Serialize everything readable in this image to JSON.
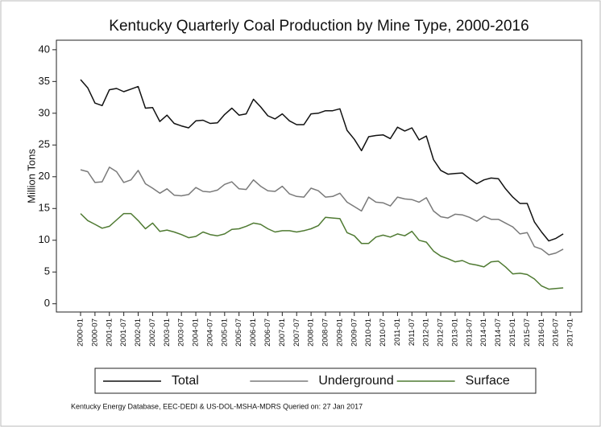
{
  "chart_data": {
    "type": "line",
    "title": "Kentucky Quarterly Coal Production by Mine Type, 2000-2016",
    "y_label": "Million Tons",
    "source": "Kentucky Energy Database, EEC-DEDI & US-DOL-MSHA-MDRS Queried on: 27 Jan 2017",
    "categories": [
      "2000-01",
      null,
      "2000-07",
      null,
      "2001-01",
      null,
      "2001-07",
      null,
      "2002-01",
      null,
      "2002-07",
      null,
      "2003-01",
      null,
      "2003-07",
      null,
      "2004-01",
      null,
      "2004-07",
      null,
      "2005-01",
      null,
      "2005-07",
      null,
      "2006-01",
      null,
      "2006-07",
      null,
      "2007-01",
      null,
      "2007-07",
      null,
      "2008-01",
      null,
      "2008-07",
      null,
      "2009-01",
      null,
      "2009-07",
      null,
      "2010-01",
      null,
      "2010-07",
      null,
      "2011-01",
      null,
      "2011-07",
      null,
      "2012-01",
      null,
      "2012-07",
      null,
      "2013-01",
      null,
      "2013-07",
      null,
      "2014-01",
      null,
      "2014-07",
      null,
      "2015-01",
      null,
      "2015-07",
      null,
      "2016-01",
      null,
      "2016-07",
      null,
      "2017-01"
    ],
    "series": [
      {
        "name": "Total",
        "color": "#111111",
        "values": [
          35.3,
          34,
          31.6,
          31.2,
          33.7,
          33.9,
          33.4,
          33.8,
          34.2,
          30.8,
          30.9,
          28.7,
          29.7,
          28.4,
          28,
          27.7,
          28.8,
          28.9,
          28.4,
          28.5,
          29.8,
          30.8,
          29.7,
          29.9,
          32.2,
          31,
          29.6,
          29.1,
          29.9,
          28.8,
          28.2,
          28.2,
          29.9,
          30,
          30.4,
          30.4,
          30.7,
          27.3,
          25.9,
          24.1,
          26.3,
          26.5,
          26.6,
          26,
          27.8,
          27.2,
          27.7,
          25.8,
          26.4,
          22.7,
          21,
          20.4,
          20.5,
          20.6,
          19.7,
          18.9,
          19.5,
          19.8,
          19.7,
          18.1,
          16.8,
          15.8,
          15.8,
          12.9,
          11.3,
          9.9,
          10.3,
          11,
          null
        ]
      },
      {
        "name": "Underground",
        "color": "#7a7a7a",
        "values": [
          21.1,
          20.8,
          19.1,
          19.2,
          21.5,
          20.8,
          19.1,
          19.5,
          21,
          18.9,
          18.2,
          17.4,
          18.1,
          17.1,
          17,
          17.2,
          18.3,
          17.7,
          17.6,
          17.9,
          18.8,
          19.2,
          18.1,
          18,
          19.5,
          18.5,
          17.8,
          17.7,
          18.5,
          17.3,
          16.9,
          16.8,
          18.2,
          17.8,
          16.8,
          16.9,
          17.4,
          16,
          15.3,
          14.6,
          16.8,
          16,
          15.9,
          15.4,
          16.8,
          16.5,
          16.4,
          16,
          16.7,
          14.6,
          13.7,
          13.5,
          14.1,
          14,
          13.6,
          13,
          13.8,
          13.3,
          13.3,
          12.7,
          12.1,
          11,
          11.2,
          9,
          8.6,
          7.7,
          8,
          8.6,
          null
        ]
      },
      {
        "name": "Surface",
        "color": "#4f7a32",
        "values": [
          14.2,
          13.1,
          12.5,
          11.9,
          12.2,
          13.2,
          14.2,
          14.2,
          13.1,
          11.8,
          12.7,
          11.4,
          11.6,
          11.3,
          10.9,
          10.4,
          10.6,
          11.3,
          10.9,
          10.7,
          11,
          11.7,
          11.8,
          12.2,
          12.7,
          12.5,
          11.8,
          11.3,
          11.5,
          11.5,
          11.3,
          11.5,
          11.8,
          12.3,
          13.6,
          13.5,
          13.4,
          11.2,
          10.7,
          9.5,
          9.5,
          10.5,
          10.8,
          10.5,
          11,
          10.7,
          11.4,
          10,
          9.7,
          8.3,
          7.5,
          7.1,
          6.6,
          6.8,
          6.3,
          6.1,
          5.8,
          6.6,
          6.7,
          5.8,
          4.7,
          4.8,
          4.6,
          3.9,
          2.8,
          2.3,
          2.4,
          2.5,
          null
        ]
      }
    ],
    "ylim": [
      -1.3,
      41.5
    ],
    "yticks": [
      0,
      5,
      10,
      15,
      20,
      25,
      30,
      35,
      40
    ],
    "legend_position": "bottom"
  }
}
